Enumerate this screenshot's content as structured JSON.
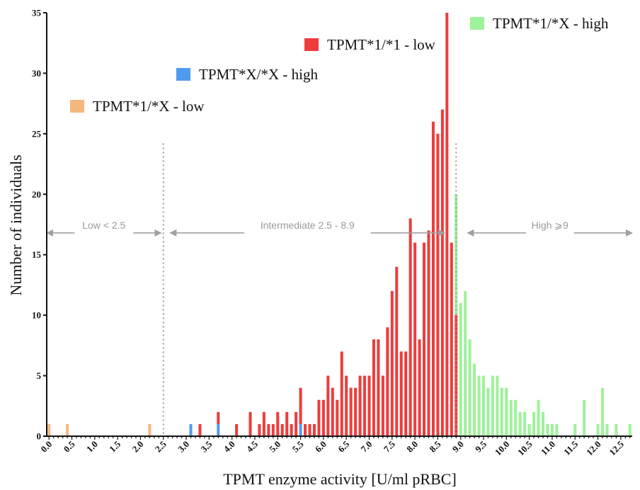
{
  "chart_data": {
    "type": "bar",
    "stacked": true,
    "xlabel": "TPMT enzyme activity [U/ml pRBC]",
    "ylabel": "Number of individuals",
    "xlim": [
      -0.05,
      12.75
    ],
    "ylim": [
      0,
      35
    ],
    "yticks": [
      0,
      5,
      10,
      15,
      20,
      25,
      30,
      35
    ],
    "xticks": [
      "0.0",
      "0.5",
      "1.0",
      "1.5",
      "2.0",
      "2.5",
      "3.0",
      "3.5",
      "4.0",
      "4.5",
      "5.0",
      "5.5",
      "6.0",
      "6.5",
      "7.0",
      "7.5",
      "8.0",
      "8.5",
      "9.0",
      "9.5",
      "10.0",
      "10.5",
      "11.0",
      "11.5",
      "12.0",
      "12.5"
    ],
    "grid": false,
    "bin_width": 0.1,
    "series": [
      {
        "name": "TPMT*1/*X - low",
        "color": "#f4b77c",
        "x": [
          0.0,
          0.4,
          2.2
        ],
        "values": [
          1,
          1,
          1
        ]
      },
      {
        "name": "TPMT*X/*X - high",
        "color": "#4f9bf0",
        "x": [
          3.1,
          3.7,
          5.5
        ],
        "values": [
          1,
          1,
          1
        ]
      },
      {
        "name": "TPMT*1/*1 - low",
        "color": "#ee3c3c",
        "x": [
          3.3,
          3.7,
          4.1,
          4.4,
          4.6,
          4.7,
          4.8,
          4.9,
          5.0,
          5.1,
          5.2,
          5.3,
          5.4,
          5.5,
          5.6,
          5.7,
          5.8,
          5.9,
          6.0,
          6.1,
          6.2,
          6.3,
          6.4,
          6.5,
          6.6,
          6.7,
          6.8,
          6.9,
          7.0,
          7.1,
          7.2,
          7.3,
          7.4,
          7.5,
          7.6,
          7.7,
          7.8,
          7.9,
          8.0,
          8.1,
          8.2,
          8.3,
          8.4,
          8.5,
          8.6,
          8.7,
          8.8,
          8.9
        ],
        "values": [
          1,
          1,
          1,
          2,
          1,
          2,
          1,
          1,
          2,
          1,
          2,
          1,
          2,
          3,
          1,
          1,
          1,
          3,
          3,
          5,
          4,
          3,
          7,
          5,
          4,
          4,
          5,
          5,
          5,
          8,
          8,
          5,
          9,
          12,
          14,
          7,
          7,
          18,
          16,
          8,
          16,
          17,
          26,
          25,
          27,
          35,
          16,
          10
        ]
      },
      {
        "name": "TPMT*1/*X - high",
        "color": "#9ef29a",
        "x": [
          8.9,
          9.0,
          9.1,
          9.2,
          9.3,
          9.4,
          9.5,
          9.6,
          9.7,
          9.8,
          9.9,
          10.0,
          10.1,
          10.2,
          10.3,
          10.4,
          10.5,
          10.6,
          10.7,
          10.8,
          10.9,
          11.0,
          11.1,
          11.5,
          11.7,
          12.0,
          12.1,
          12.2,
          12.4,
          12.7
        ],
        "values": [
          10,
          11,
          12,
          8,
          6,
          5,
          5,
          4,
          5,
          5,
          4,
          4,
          3,
          3,
          2,
          2,
          1,
          2,
          3,
          2,
          1,
          1,
          1,
          1,
          3,
          1,
          4,
          1,
          1,
          1
        ]
      }
    ],
    "thresholds": [
      {
        "x": 2.5
      },
      {
        "x": 8.9
      }
    ],
    "ranges": [
      {
        "label": "Low < 2.5",
        "from": -0.05,
        "to": 2.45
      },
      {
        "label": "Intermediate 2.5 - 8.9",
        "from": 2.65,
        "to": 8.65
      },
      {
        "label": "High ⩾9",
        "from": 9.15,
        "to": 12.75
      }
    ],
    "range_arrow_y": 16.8,
    "range_arrow_color": "#a0a0a0",
    "legend": [
      {
        "label": "TPMT*1/*X - high",
        "color": "#9ef29a"
      },
      {
        "label": "TPMT*1/*1 - low",
        "color": "#ee3c3c"
      },
      {
        "label": "TPMT*X/*X - high",
        "color": "#4f9bf0"
      },
      {
        "label": "TPMT*1/*X - low",
        "color": "#f4b77c"
      }
    ]
  }
}
